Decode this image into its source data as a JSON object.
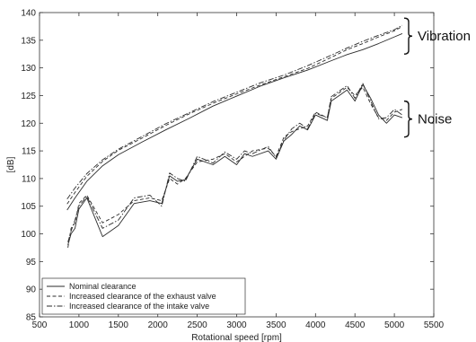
{
  "chart_data": {
    "type": "line",
    "title": "",
    "xlabel": "Rotational speed [rpm]",
    "ylabel": "[dB]",
    "xlim": [
      500,
      5500
    ],
    "ylim": [
      85,
      140
    ],
    "xticks": [
      500,
      1000,
      1500,
      2000,
      2500,
      3000,
      3500,
      4000,
      4500,
      5000,
      5500
    ],
    "yticks": [
      85,
      90,
      95,
      100,
      105,
      110,
      115,
      120,
      125,
      130,
      135,
      140
    ],
    "grid": false,
    "legend_position": "bottom-left",
    "legend": [
      "Nominal clearance",
      "Increased clearance of the exhaust valve",
      "Increased clearance of the intake valve"
    ],
    "annotations": [
      {
        "text": "Vibration",
        "y_range": [
          132.5,
          139
        ]
      },
      {
        "text": "Noise",
        "y_range": [
          117.5,
          124
        ]
      }
    ],
    "series": [
      {
        "name": "Nominal clearance",
        "group": "Vibration",
        "dash": "solid",
        "x": [
          850,
          950,
          1100,
          1300,
          1500,
          1800,
          2100,
          2400,
          2700,
          3000,
          3300,
          3600,
          3900,
          4200,
          4400,
          4600,
          4800,
          5000,
          5100
        ],
        "y": [
          104.3,
          106.5,
          109.5,
          112.3,
          114.3,
          116.6,
          118.8,
          120.9,
          123.1,
          124.9,
          126.7,
          128.2,
          129.6,
          131.3,
          132.4,
          133.3,
          134.4,
          135.6,
          136.2
        ]
      },
      {
        "name": "Increased clearance of the exhaust valve",
        "group": "Vibration",
        "dash": "dash",
        "x": [
          850,
          950,
          1100,
          1300,
          1500,
          1800,
          2100,
          2400,
          2700,
          3000,
          3300,
          3600,
          3900,
          4200,
          4400,
          4600,
          4800,
          5000,
          5100
        ],
        "y": [
          105.4,
          107.5,
          110.4,
          113.1,
          115.1,
          117.3,
          119.6,
          121.7,
          123.6,
          125.3,
          126.9,
          128.4,
          129.9,
          131.9,
          133.3,
          134.4,
          135.6,
          136.7,
          137.5
        ]
      },
      {
        "name": "Increased clearance of the intake valve",
        "group": "Vibration",
        "dash": "dashdot",
        "x": [
          850,
          950,
          1100,
          1300,
          1500,
          1800,
          2100,
          2400,
          2700,
          3000,
          3300,
          3600,
          3900,
          4200,
          4400,
          4600,
          4800,
          5000,
          5100
        ],
        "y": [
          106.3,
          108.3,
          110.9,
          113.4,
          115.3,
          117.6,
          119.9,
          121.9,
          123.9,
          125.6,
          127.3,
          128.7,
          130.4,
          132.3,
          133.6,
          134.8,
          135.9,
          136.9,
          137.7
        ]
      },
      {
        "name": "Nominal clearance",
        "group": "Noise",
        "dash": "solid",
        "x": [
          860,
          900,
          950,
          1000,
          1100,
          1300,
          1500,
          1700,
          1900,
          2050,
          2150,
          2250,
          2350,
          2500,
          2700,
          2850,
          3000,
          3100,
          3200,
          3400,
          3500,
          3600,
          3700,
          3800,
          3900,
          4000,
          4150,
          4200,
          4300,
          4400,
          4500,
          4600,
          4700,
          4800,
          4900,
          5000,
          5100
        ],
        "y": [
          98.0,
          100.0,
          101.0,
          104.5,
          106.5,
          99.5,
          101.5,
          105.5,
          106.0,
          105.5,
          110.5,
          109.5,
          109.8,
          113.5,
          112.5,
          114.0,
          112.5,
          114.5,
          114.0,
          115.0,
          113.5,
          116.8,
          118.0,
          119.5,
          118.8,
          121.5,
          120.5,
          124.0,
          125.0,
          126.0,
          124.0,
          127.0,
          124.5,
          121.5,
          120.0,
          121.5,
          121.0
        ]
      },
      {
        "name": "Increased clearance of the exhaust valve",
        "group": "Noise",
        "dash": "dash",
        "x": [
          860,
          900,
          950,
          1000,
          1100,
          1300,
          1500,
          1700,
          1900,
          2050,
          2150,
          2250,
          2350,
          2500,
          2700,
          2850,
          3000,
          3100,
          3200,
          3400,
          3500,
          3600,
          3700,
          3800,
          3900,
          4000,
          4150,
          4200,
          4300,
          4400,
          4500,
          4600,
          4700,
          4800,
          4900,
          5000,
          5100
        ],
        "y": [
          97.5,
          101.0,
          102.0,
          105.5,
          107.0,
          102.0,
          103.5,
          106.0,
          106.5,
          106.0,
          110.0,
          109.0,
          110.0,
          113.0,
          113.5,
          114.5,
          113.0,
          114.0,
          115.0,
          115.5,
          114.0,
          117.5,
          118.5,
          119.0,
          119.5,
          122.0,
          121.0,
          124.5,
          125.5,
          126.5,
          125.0,
          126.5,
          123.5,
          121.0,
          120.5,
          122.0,
          122.5
        ]
      },
      {
        "name": "Increased clearance of the intake valve",
        "group": "Noise",
        "dash": "dashdot",
        "x": [
          860,
          900,
          950,
          1000,
          1100,
          1300,
          1500,
          1700,
          1900,
          2050,
          2150,
          2250,
          2350,
          2500,
          2700,
          2850,
          3000,
          3100,
          3200,
          3400,
          3500,
          3600,
          3700,
          3800,
          3900,
          4000,
          4150,
          4200,
          4300,
          4400,
          4500,
          4600,
          4700,
          4800,
          4900,
          5000,
          5100
        ],
        "y": [
          98.5,
          100.5,
          102.5,
          105.0,
          106.8,
          101.0,
          102.5,
          106.5,
          107.0,
          105.0,
          111.0,
          110.0,
          109.5,
          114.0,
          112.8,
          114.8,
          113.5,
          115.0,
          114.5,
          115.8,
          113.8,
          117.0,
          119.0,
          120.0,
          119.0,
          121.8,
          121.0,
          124.8,
          125.8,
          126.8,
          124.5,
          127.2,
          124.0,
          120.8,
          121.0,
          122.5,
          121.5
        ]
      }
    ]
  }
}
